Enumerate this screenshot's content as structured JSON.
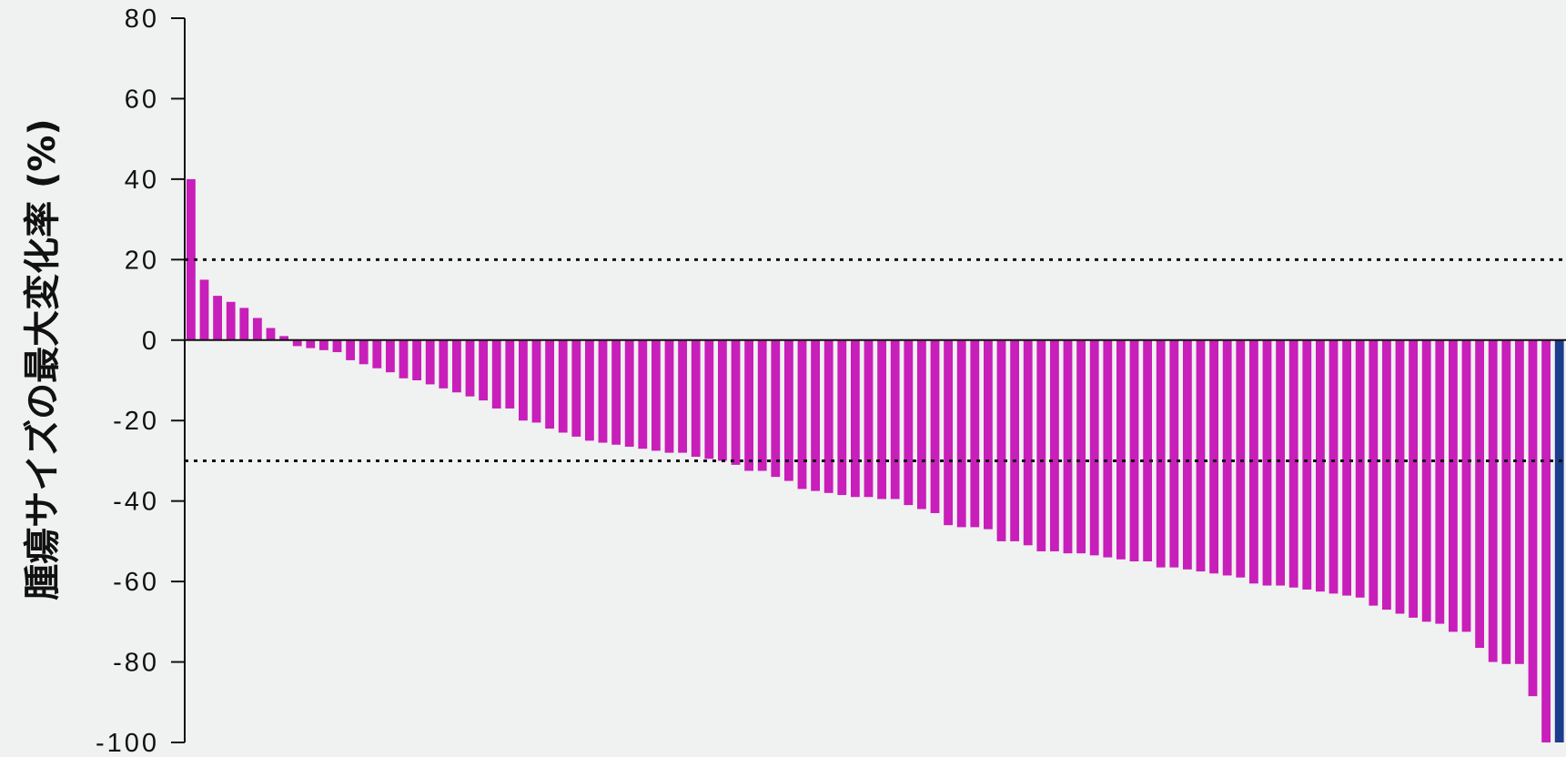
{
  "chart_data": {
    "type": "bar",
    "title": "",
    "xlabel": "",
    "ylabel": "腫瘍サイズの最大変化率 (%)",
    "ylim": [
      -100,
      80
    ],
    "yticks": [
      80,
      60,
      40,
      20,
      0,
      -20,
      -40,
      -60,
      -80,
      -100
    ],
    "ytick_labels": [
      "80",
      "60",
      "40",
      "20",
      "0",
      "-20",
      "-40",
      "-60",
      "-80",
      "-100"
    ],
    "reference_lines": [
      20,
      -30
    ],
    "grid": false,
    "colors": {
      "primary": "#c81eba",
      "highlight": "#1c3c8c",
      "axis": "#111111",
      "background": "#f0f1f1"
    },
    "series": [
      {
        "color": "#c81eba",
        "values": [
          40,
          15,
          11,
          9.5,
          8,
          5.5,
          3,
          1,
          -1.5,
          -2,
          -2.5,
          -3,
          -5,
          -6,
          -7,
          -8,
          -9.5,
          -10,
          -11,
          -12,
          -13,
          -14,
          -15,
          -17,
          -17,
          -20,
          -20.5,
          -22,
          -23,
          -24,
          -25,
          -25.5,
          -26,
          -26.5,
          -27,
          -27.5,
          -28,
          -28,
          -29,
          -29.5,
          -30,
          -31,
          -32.5,
          -32.5,
          -34,
          -35,
          -37,
          -37.5,
          -38,
          -38.5,
          -39,
          -39,
          -39.5,
          -39.5,
          -41,
          -42,
          -43,
          -46,
          -46.5,
          -46.5,
          -47,
          -50,
          -50,
          -51,
          -52.5,
          -52.5,
          -53,
          -53,
          -53.5,
          -54,
          -54.5,
          -55,
          -55,
          -56.5,
          -56.5,
          -57,
          -57.5,
          -58,
          -58.5,
          -59,
          -60.5,
          -61,
          -61,
          -61.5,
          -62,
          -62.5,
          -63,
          -63.5,
          -64,
          -66,
          -67,
          -68,
          -69,
          -70,
          -70.5,
          -72.5,
          -72.5,
          -76.5,
          -80,
          -80.5,
          -80.5,
          -88.5,
          -100
        ]
      },
      {
        "color": "#1c3c8c",
        "values": [
          -100,
          -100
        ]
      }
    ]
  }
}
